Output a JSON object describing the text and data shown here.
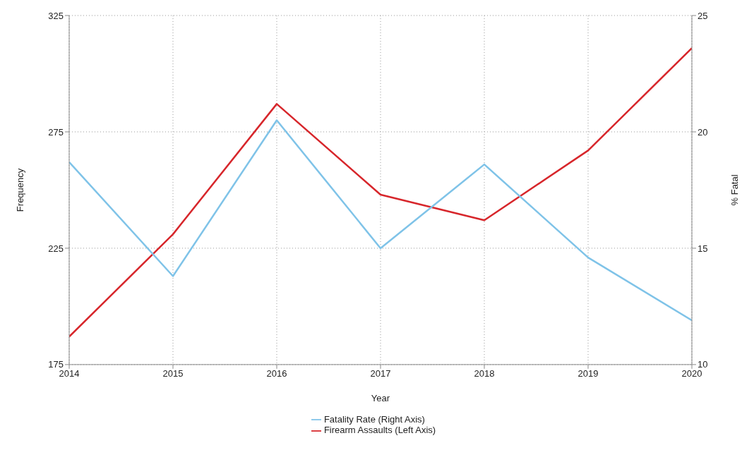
{
  "chart_data": {
    "type": "line",
    "xlabel": "Year",
    "ylabel": "Frequency",
    "y2label": "% Fatal",
    "x": [
      2014,
      2015,
      2016,
      2017,
      2018,
      2019,
      2020
    ],
    "series": [
      {
        "name": "Firearm Assaults (Left Axis)",
        "color": "#d7262b",
        "values": [
          187,
          231,
          287,
          248,
          237,
          267,
          311
        ]
      },
      {
        "name": "Fatality Rate (Right Axis)",
        "color": "#7fc3e8",
        "axis": "y2",
        "values": [
          18.7,
          13.8,
          20.5,
          15.0,
          18.6,
          14.6,
          11.9
        ]
      }
    ],
    "xlim": [
      2014,
      2020
    ],
    "xticks": [
      2014,
      2015,
      2016,
      2017,
      2018,
      2019,
      2020
    ],
    "ylim": [
      175,
      325
    ],
    "yticks": [
      175,
      225,
      275,
      325
    ],
    "y2lim": [
      10,
      25
    ],
    "y2ticks": [
      10,
      15,
      20,
      25
    ],
    "grid": true,
    "legend": "bottom",
    "marker": "none",
    "line_style": "solid"
  }
}
